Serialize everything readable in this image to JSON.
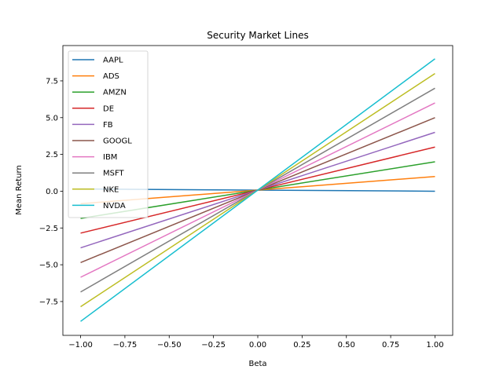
{
  "chart_data": {
    "type": "line",
    "title": "Security Market Lines",
    "xlabel": "Beta",
    "ylabel": "Mean Return",
    "xlim": [
      -1.1,
      1.1
    ],
    "ylim": [
      -9.8,
      9.9
    ],
    "xticks": [
      -1.0,
      -0.75,
      -0.5,
      -0.25,
      0.0,
      0.25,
      0.5,
      0.75,
      1.0
    ],
    "xtick_labels": [
      "−1.00",
      "−0.75",
      "−0.50",
      "−0.25",
      "0.00",
      "0.25",
      "0.50",
      "0.75",
      "1.00"
    ],
    "yticks": [
      -7.5,
      -5.0,
      -2.5,
      0.0,
      2.5,
      5.0,
      7.5
    ],
    "ytick_labels": [
      "−7.5",
      "−5.0",
      "−2.5",
      "0.0",
      "2.5",
      "5.0",
      "7.5"
    ],
    "legend_position": "top-left",
    "grid": false,
    "x": [
      -1.0,
      1.0
    ],
    "series": [
      {
        "name": "AAPL",
        "color": "#1f77b4",
        "values": [
          0.15,
          0.0
        ]
      },
      {
        "name": "ADS",
        "color": "#ff7f0e",
        "values": [
          -0.85,
          1.0
        ]
      },
      {
        "name": "AMZN",
        "color": "#2ca02c",
        "values": [
          -1.85,
          2.0
        ]
      },
      {
        "name": "DE",
        "color": "#d62728",
        "values": [
          -2.85,
          3.0
        ]
      },
      {
        "name": "FB",
        "color": "#9467bd",
        "values": [
          -3.85,
          4.0
        ]
      },
      {
        "name": "GOOGL",
        "color": "#8c564b",
        "values": [
          -4.85,
          5.0
        ]
      },
      {
        "name": "IBM",
        "color": "#e377c2",
        "values": [
          -5.85,
          6.0
        ]
      },
      {
        "name": "MSFT",
        "color": "#7f7f7f",
        "values": [
          -6.85,
          7.0
        ]
      },
      {
        "name": "NKE",
        "color": "#bcbd22",
        "values": [
          -7.85,
          8.0
        ]
      },
      {
        "name": "NVDA",
        "color": "#17becf",
        "values": [
          -8.85,
          9.0
        ]
      }
    ]
  }
}
